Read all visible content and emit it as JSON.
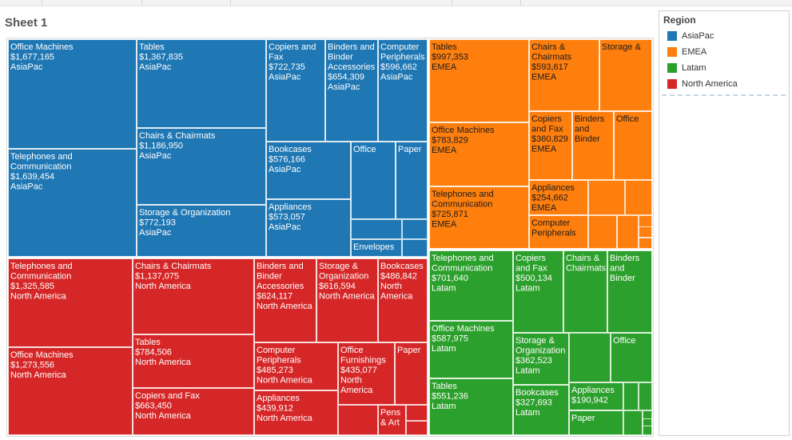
{
  "sheet_title": "Sheet 1",
  "legend": {
    "title": "Region",
    "items": [
      {
        "label": "AsiaPac",
        "color": "#1f77b4"
      },
      {
        "label": "EMEA",
        "color": "#ff7f0e"
      },
      {
        "label": "Latam",
        "color": "#2ca02c"
      },
      {
        "label": "North America",
        "color": "#d62728"
      }
    ]
  },
  "chart_data": {
    "type": "treemap",
    "title": "",
    "series": [
      {
        "name": "AsiaPac",
        "color": "#1f77b4",
        "items": [
          {
            "label": [
              "Office Machines",
              "$1,677,165",
              "AsiaPac"
            ],
            "category": "Office Machines",
            "value": 1677165
          },
          {
            "label": [
              "Tables",
              "$1,367,835",
              "AsiaPac"
            ],
            "category": "Tables",
            "value": 1367835
          },
          {
            "label": [
              "Copiers and",
              "Fax",
              "$722,735",
              "AsiaPac"
            ],
            "category": "Copiers and Fax",
            "value": 722735
          },
          {
            "label": [
              "Binders and",
              "Binder",
              "Accessories",
              "$654,309",
              "AsiaPac"
            ],
            "category": "Binders and Binder Accessories",
            "value": 654309
          },
          {
            "label": [
              "Computer",
              "Peripherals",
              "$596,662",
              "AsiaPac"
            ],
            "category": "Computer Peripherals",
            "value": 596662
          },
          {
            "label": [
              "Chairs & Chairmats",
              "$1,186,950",
              "AsiaPac"
            ],
            "category": "Chairs & Chairmats",
            "value": 1186950
          },
          {
            "label": [
              "Telephones and",
              "Communication",
              "$1,639,454",
              "AsiaPac"
            ],
            "category": "Telephones and Communication",
            "value": 1639454
          },
          {
            "label": [
              "Bookcases",
              "$576,166",
              "AsiaPac"
            ],
            "category": "Bookcases",
            "value": 576166
          },
          {
            "label": [
              "Office"
            ],
            "category": "Office Furnishings",
            "value": null
          },
          {
            "label": [
              "Paper"
            ],
            "category": "Paper",
            "value": null
          },
          {
            "label": [
              "Storage & Organization",
              "$772,193",
              "AsiaPac"
            ],
            "category": "Storage & Organization",
            "value": 772193
          },
          {
            "label": [
              "Appliances",
              "$573,057",
              "AsiaPac"
            ],
            "category": "Appliances",
            "value": 573057
          },
          {
            "label": [
              "Envelopes"
            ],
            "category": "Envelopes",
            "value": null
          }
        ]
      },
      {
        "name": "EMEA",
        "color": "#ff7f0e",
        "items": [
          {
            "label": [
              "Tables",
              "$997,353",
              "EMEA"
            ],
            "category": "Tables",
            "value": 997353
          },
          {
            "label": [
              "Chairs &",
              "Chairmats",
              "$593,617",
              "EMEA"
            ],
            "category": "Chairs & Chairmats",
            "value": 593617
          },
          {
            "label": [
              "Storage &"
            ],
            "category": "Storage & Organization",
            "value": null
          },
          {
            "label": [
              "Office Machines",
              "$783,829",
              "EMEA"
            ],
            "category": "Office Machines",
            "value": 783829
          },
          {
            "label": [
              "Copiers",
              "and Fax",
              "$360,829",
              "EMEA"
            ],
            "category": "Copiers and Fax",
            "value": 360829
          },
          {
            "label": [
              "Binders",
              "and",
              "Binder"
            ],
            "category": "Binders and Binder Accessories",
            "value": null
          },
          {
            "label": [
              "Office"
            ],
            "category": "Office Furnishings",
            "value": null
          },
          {
            "label": [
              "Telephones and",
              "Communication",
              "$725,871",
              "EMEA"
            ],
            "category": "Telephones and Communication",
            "value": 725871
          },
          {
            "label": [
              "Appliances",
              "$254,662",
              "EMEA"
            ],
            "category": "Appliances",
            "value": 254662
          },
          {
            "label": [
              "Computer",
              "Peripherals"
            ],
            "category": "Computer Peripherals",
            "value": null
          }
        ]
      },
      {
        "name": "Latam",
        "color": "#2ca02c",
        "items": [
          {
            "label": [
              "Telephones and",
              "Communication",
              "$701,640",
              "Latam"
            ],
            "category": "Telephones and Communication",
            "value": 701640
          },
          {
            "label": [
              "Copiers",
              "and Fax",
              "$500,134",
              "Latam"
            ],
            "category": "Copiers and Fax",
            "value": 500134
          },
          {
            "label": [
              "Chairs &",
              "Chairmats"
            ],
            "category": "Chairs & Chairmats",
            "value": null
          },
          {
            "label": [
              "Binders",
              "and",
              "Binder"
            ],
            "category": "Binders and Binder Accessories",
            "value": null
          },
          {
            "label": [
              "Office Machines",
              "$587,975",
              "Latam"
            ],
            "category": "Office Machines",
            "value": 587975
          },
          {
            "label": [
              "Storage &",
              "Organization",
              "$362,523",
              "Latam"
            ],
            "category": "Storage & Organization",
            "value": 362523
          },
          {
            "label": [
              "Office"
            ],
            "category": "Office Furnishings",
            "value": null
          },
          {
            "label": [
              "Tables",
              "$551,236",
              "Latam"
            ],
            "category": "Tables",
            "value": 551236
          },
          {
            "label": [
              "Bookcases",
              "$327,693",
              "Latam"
            ],
            "category": "Bookcases",
            "value": 327693
          },
          {
            "label": [
              "Appliances",
              "$190,942"
            ],
            "category": "Appliances",
            "value": 190942
          },
          {
            "label": [
              "Paper"
            ],
            "category": "Paper",
            "value": null
          }
        ]
      },
      {
        "name": "North America",
        "color": "#d62728",
        "items": [
          {
            "label": [
              "Telephones and",
              "Communication",
              "$1,325,585",
              "North America"
            ],
            "category": "Telephones and Communication",
            "value": 1325585
          },
          {
            "label": [
              "Chairs & Chairmats",
              "$1,137,075",
              "North America"
            ],
            "category": "Chairs & Chairmats",
            "value": 1137075
          },
          {
            "label": [
              "Binders and",
              "Binder",
              "Accessories",
              "$624,117",
              "North America"
            ],
            "category": "Binders and Binder Accessories",
            "value": 624117
          },
          {
            "label": [
              "Storage &",
              "Organization",
              "$616,594",
              "North America"
            ],
            "category": "Storage & Organization",
            "value": 616594
          },
          {
            "label": [
              "Bookcases",
              "$486,842",
              "North",
              "America"
            ],
            "category": "Bookcases",
            "value": 486842
          },
          {
            "label": [
              "Office Machines",
              "$1,273,556",
              "North America"
            ],
            "category": "Office Machines",
            "value": 1273556
          },
          {
            "label": [
              "Tables",
              "$784,506",
              "North America"
            ],
            "category": "Tables",
            "value": 784506
          },
          {
            "label": [
              "Computer",
              "Peripherals",
              "$485,273",
              "North America"
            ],
            "category": "Computer Peripherals",
            "value": 485273
          },
          {
            "label": [
              "Office",
              "Furnishings",
              "$435,077",
              "North",
              "America"
            ],
            "category": "Office Furnishings",
            "value": 435077
          },
          {
            "label": [
              "Paper"
            ],
            "category": "Paper",
            "value": null
          },
          {
            "label": [
              "Copiers and Fax",
              "$663,450",
              "North America"
            ],
            "category": "Copiers and Fax",
            "value": 663450
          },
          {
            "label": [
              "Appliances",
              "$439,912",
              "North America"
            ],
            "category": "Appliances",
            "value": 439912
          },
          {
            "label": [
              "Pens",
              "& Art"
            ],
            "category": "Pens & Art Supplies",
            "value": null
          }
        ]
      }
    ]
  }
}
